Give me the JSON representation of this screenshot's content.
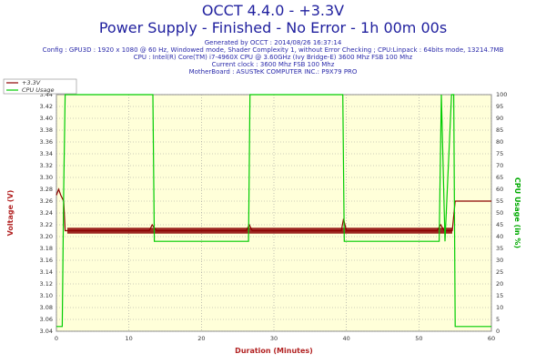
{
  "header": {
    "title": "OCCT 4.4.0 - +3.3V",
    "subtitle": "Power Supply - Finished - No Error - 1h 00m 00s",
    "info_lines": [
      "Generated by OCCT : 2014/08/26 16:37:14",
      "Config : GPU3D : 1920 x 1080 @ 60 Hz, Windowed mode, Shader Complexity 1, without Error Checking ; CPU:Linpack : 64bits mode, 13214.7MB",
      "CPU : Intel(R) Core(TM) i7-4960X CPU @ 3.60GHz (Ivy Bridge-E) 3600 Mhz FSB 100 Mhz",
      "Current clock : 3600 Mhz FSB 100 Mhz",
      "MotherBoard : ASUSTeK COMPUTER INC.: P9X79 PRO"
    ]
  },
  "colors": {
    "voltage": "#8b0000",
    "cpu_usage": "#00cc00",
    "plot_bg": "#ffffd9",
    "axis_label": "#b22222",
    "cpu_axis_label": "#00aa00",
    "text": "#1f1f9e"
  },
  "chart_data": {
    "type": "line",
    "xlabel": "Duration (Minutes)",
    "ylabel": "Voltage (V)",
    "y2label": "CPU Usage (in %)",
    "xlim": [
      0,
      60
    ],
    "ylim": [
      3.04,
      3.44
    ],
    "y2lim": [
      0,
      100
    ],
    "xticks": [
      0,
      10,
      20,
      30,
      40,
      50,
      60
    ],
    "yticks": [
      3.04,
      3.06,
      3.08,
      3.1,
      3.12,
      3.14,
      3.16,
      3.18,
      3.2,
      3.22,
      3.24,
      3.26,
      3.28,
      3.3,
      3.32,
      3.34,
      3.36,
      3.38,
      3.4,
      3.42,
      3.44
    ],
    "y2ticks": [
      0,
      5,
      10,
      15,
      20,
      25,
      30,
      35,
      40,
      45,
      50,
      55,
      60,
      65,
      70,
      75,
      80,
      85,
      90,
      95,
      100
    ],
    "grid": true,
    "legend_position": "top-left",
    "series": [
      {
        "name": "+3.3V",
        "axis": "left",
        "x": [
          0,
          0.3,
          0.6,
          1.0,
          1.2,
          1.5,
          12.8,
          13.2,
          13.8,
          26.2,
          26.6,
          27.0,
          39.3,
          39.6,
          40.0,
          52.5,
          53.0,
          53.5,
          54.2,
          54.6,
          55.0,
          60.0
        ],
        "values": [
          3.27,
          3.28,
          3.27,
          3.26,
          3.21,
          3.21,
          3.21,
          3.22,
          3.21,
          3.21,
          3.22,
          3.21,
          3.21,
          3.23,
          3.21,
          3.21,
          3.22,
          3.21,
          3.21,
          3.21,
          3.26,
          3.26
        ]
      },
      {
        "name": "CPU Usage",
        "axis": "right",
        "x": [
          0,
          0.8,
          1.0,
          1.2,
          13.3,
          13.5,
          14.2,
          26.5,
          26.7,
          27.3,
          39.5,
          39.7,
          40.3,
          52.8,
          53.1,
          53.6,
          54.5,
          54.8,
          55.0,
          60.0
        ],
        "values": [
          2,
          2,
          60,
          100,
          100,
          38,
          38,
          38,
          100,
          100,
          100,
          38,
          38,
          38,
          100,
          38,
          100,
          100,
          2,
          2
        ]
      }
    ]
  }
}
